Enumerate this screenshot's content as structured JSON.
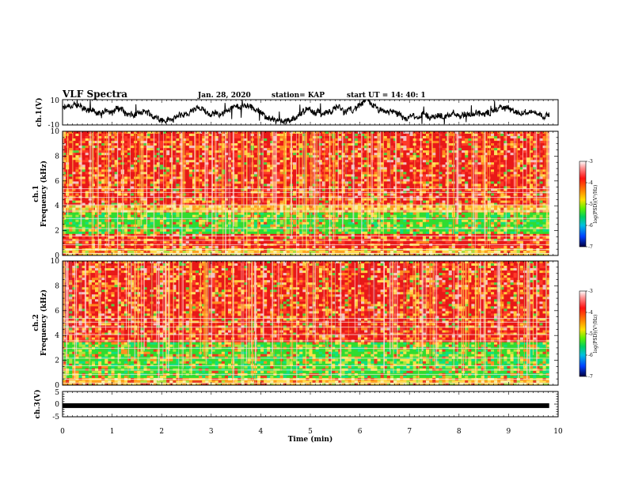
{
  "header": {
    "title": "VLF Spectra",
    "date": "Jan. 28, 2020",
    "station": "station= KAP",
    "start": "start  UT =   14: 40: 1"
  },
  "chart_data": [
    {
      "type": "line",
      "name": "ch1-waveform",
      "ylabel": "ch.1(V)",
      "ylim": [
        -10,
        10
      ],
      "yticks": [
        "10",
        "-10"
      ],
      "xlim": [
        0,
        10
      ]
    },
    {
      "type": "heatmap",
      "name": "ch1-spectrogram",
      "ylabel_line1": "ch.1",
      "ylabel_line2": "Frequency  (kHz)",
      "ylim": [
        0,
        10
      ],
      "yticks": [
        "0",
        "2",
        "4",
        "6",
        "8",
        "10"
      ],
      "xlim": [
        0,
        10
      ],
      "bands_khz": {
        "green": [
          [
            1.7,
            3.5
          ]
        ],
        "red": [
          [
            0.5,
            1.6
          ],
          [
            4.0,
            10.0
          ]
        ],
        "yellow": [
          [
            0.0,
            0.5
          ],
          [
            3.5,
            4.0
          ]
        ]
      },
      "colorbar": {
        "label": "log(PSD)(V²/Hz)",
        "range": [
          -7,
          -3
        ],
        "ticks": [
          "-3",
          "-4",
          "-5",
          "-6",
          "-7"
        ]
      }
    },
    {
      "type": "heatmap",
      "name": "ch2-spectrogram",
      "ylabel_line1": "ch.2",
      "ylabel_line2": "Frequency  (kHz)",
      "ylim": [
        0,
        10
      ],
      "yticks": [
        "0",
        "2",
        "4",
        "6",
        "8",
        "10"
      ],
      "xlim": [
        0,
        10
      ],
      "bands_khz": {
        "green": [
          [
            0.6,
            3.5
          ]
        ],
        "red": [
          [
            3.6,
            10.0
          ]
        ],
        "yellow": [
          [
            0.0,
            0.6
          ]
        ]
      },
      "colorbar": {
        "label": "log(PSD)(V²/Hz)",
        "range": [
          -7,
          -3
        ],
        "ticks": [
          "-3",
          "-4",
          "-5",
          "-6",
          "-7"
        ]
      }
    },
    {
      "type": "line",
      "name": "ch3-waveform",
      "ylabel": "ch.3(V)",
      "ylim": [
        -5,
        5
      ],
      "yticks": [
        "5",
        "0",
        "-5"
      ],
      "xlim": [
        0,
        10
      ],
      "signal_level": -0.6
    }
  ],
  "xaxis": {
    "label": "Time  (min)",
    "ticks": [
      "0",
      "1",
      "2",
      "3",
      "4",
      "5",
      "6",
      "7",
      "8",
      "9",
      "10"
    ],
    "data_end_min": 9.82
  }
}
